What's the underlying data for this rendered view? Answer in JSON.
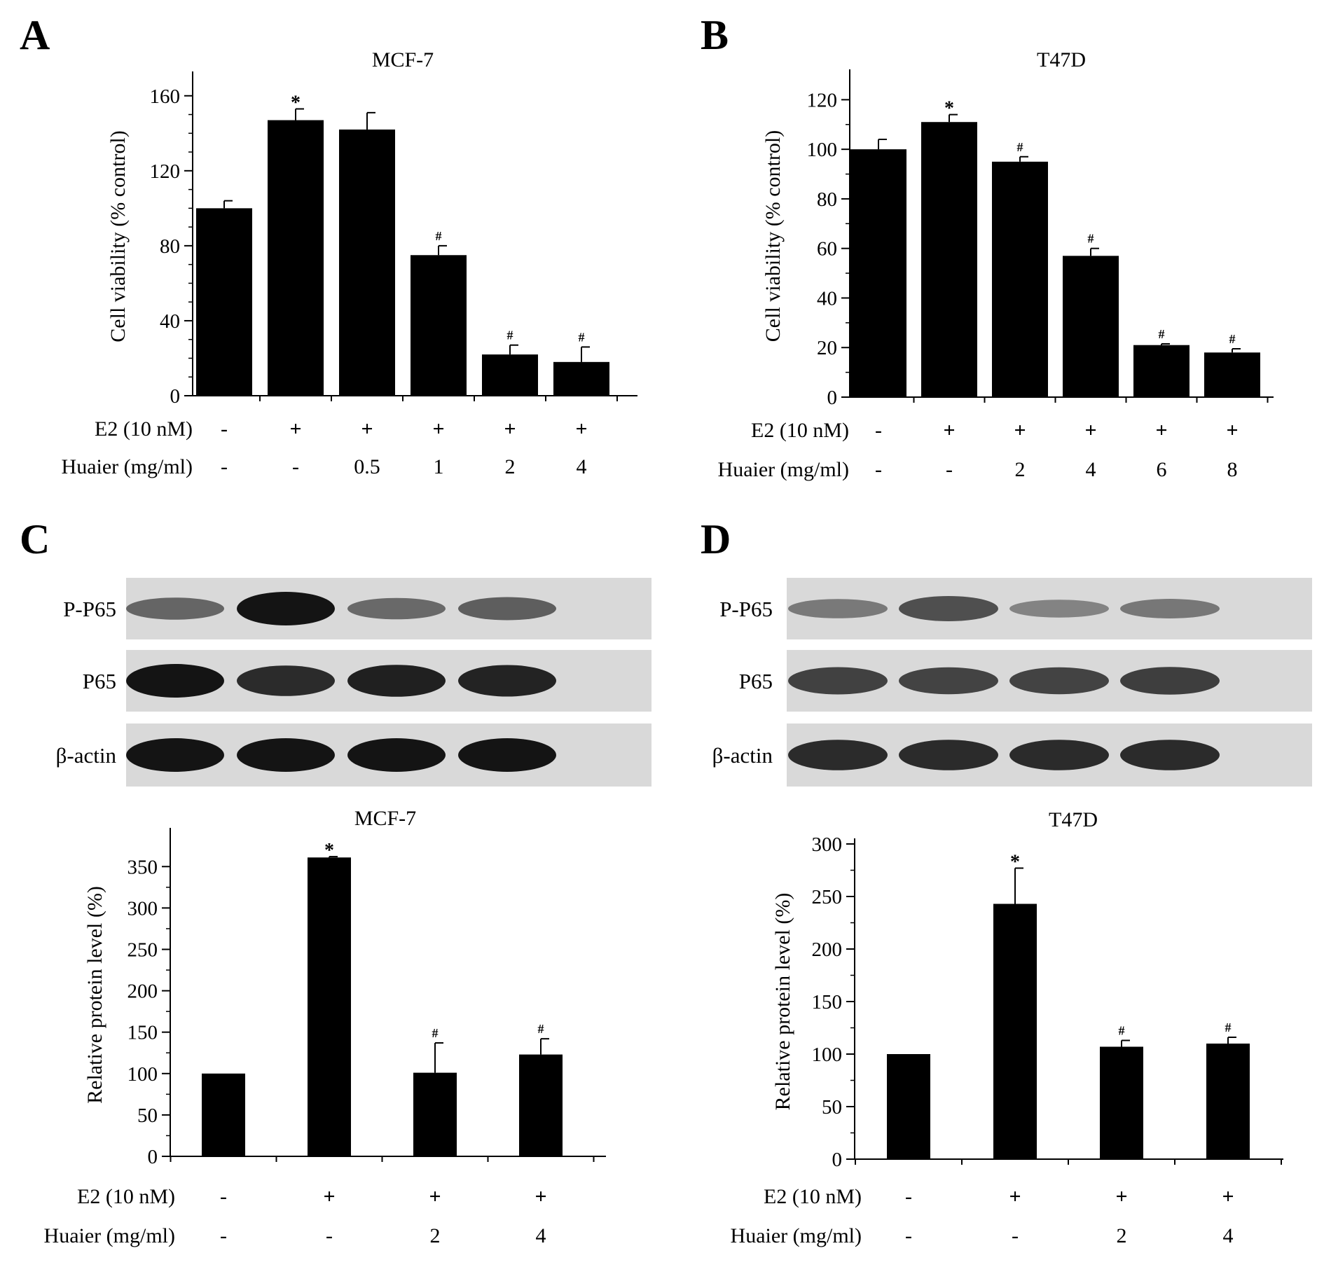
{
  "panels": [
    "A",
    "B",
    "C",
    "D"
  ],
  "chart_data": [
    {
      "id": "A",
      "type": "bar",
      "title": "MCF-7",
      "ylabel": "Cell viability (% control)",
      "xlabel": "",
      "ylim": [
        0,
        170
      ],
      "yticks": [
        0,
        40,
        80,
        120,
        160
      ],
      "categories": [
        "1",
        "2",
        "3",
        "4",
        "5",
        "6"
      ],
      "values": [
        100,
        147,
        142,
        75,
        22,
        18
      ],
      "errors": [
        4,
        6,
        9,
        5,
        5,
        8
      ],
      "marks": [
        "",
        "*",
        "",
        "#",
        "#",
        "#"
      ],
      "conditions": [
        {
          "label": "E2 (10 nM)",
          "values": [
            "-",
            "+",
            "+",
            "+",
            "+",
            "+"
          ]
        },
        {
          "label": "Huaier (mg/ml)",
          "values": [
            "-",
            "-",
            "0.5",
            "1",
            "2",
            "4"
          ]
        }
      ]
    },
    {
      "id": "B",
      "type": "bar",
      "title": "T47D",
      "ylabel": "Cell viability (% control)",
      "xlabel": "",
      "ylim": [
        0,
        130
      ],
      "yticks": [
        0,
        20,
        40,
        60,
        80,
        100,
        120
      ],
      "categories": [
        "1",
        "2",
        "3",
        "4",
        "5",
        "6"
      ],
      "values": [
        100,
        111,
        95,
        57,
        21,
        18
      ],
      "errors": [
        4,
        3,
        2,
        3,
        0.5,
        1.5
      ],
      "marks": [
        "",
        "*",
        "#",
        "#",
        "#",
        "#"
      ],
      "conditions": [
        {
          "label": "E2 (10 nM)",
          "values": [
            "-",
            "+",
            "+",
            "+",
            "+",
            "+"
          ]
        },
        {
          "label": "Huaier (mg/ml)",
          "values": [
            "-",
            "-",
            "2",
            "4",
            "6",
            "8"
          ]
        }
      ]
    },
    {
      "id": "C",
      "type": "bar",
      "title": "MCF-7",
      "ylabel": "Relative protein level (%)",
      "xlabel": "",
      "ylim": [
        0,
        390
      ],
      "yticks": [
        0,
        50,
        100,
        150,
        200,
        250,
        300,
        350
      ],
      "categories": [
        "1",
        "2",
        "3",
        "4"
      ],
      "values": [
        100,
        361,
        101,
        123
      ],
      "errors": [
        0,
        1,
        36,
        19
      ],
      "marks": [
        "",
        "*",
        "#",
        "#"
      ],
      "conditions": [
        {
          "label": "E2 (10 nM)",
          "values": [
            "-",
            "+",
            "+",
            "+"
          ]
        },
        {
          "label": "Huaier (mg/ml)",
          "values": [
            "-",
            "-",
            "2",
            "4"
          ]
        }
      ]
    },
    {
      "id": "D",
      "type": "bar",
      "title": "T47D",
      "ylabel": "Relative protein level (%)",
      "xlabel": "",
      "ylim": [
        0,
        300
      ],
      "yticks": [
        0,
        50,
        100,
        150,
        200,
        250,
        300
      ],
      "categories": [
        "1",
        "2",
        "3",
        "4"
      ],
      "values": [
        100,
        243,
        107,
        110
      ],
      "errors": [
        0,
        34,
        6,
        6
      ],
      "marks": [
        "",
        "*",
        "#",
        "#"
      ],
      "conditions": [
        {
          "label": "E2 (10 nM)",
          "values": [
            "-",
            "+",
            "+",
            "+"
          ]
        },
        {
          "label": "Huaier (mg/ml)",
          "values": [
            "-",
            "-",
            "2",
            "4"
          ]
        }
      ]
    }
  ],
  "blots": {
    "C": {
      "rows": [
        {
          "label": "P-P65",
          "intensity": [
            0.45,
            1.0,
            0.42,
            0.5
          ]
        },
        {
          "label": "P65",
          "intensity": [
            1.0,
            0.85,
            0.92,
            0.9
          ]
        },
        {
          "label": "β-actin",
          "intensity": [
            1.0,
            1.0,
            1.0,
            1.0
          ]
        }
      ]
    },
    "D": {
      "rows": [
        {
          "label": "P-P65",
          "intensity": [
            0.32,
            0.6,
            0.25,
            0.33
          ]
        },
        {
          "label": "P65",
          "intensity": [
            0.7,
            0.68,
            0.68,
            0.72
          ]
        },
        {
          "label": "β-actin",
          "intensity": [
            0.85,
            0.85,
            0.85,
            0.85
          ]
        }
      ]
    }
  },
  "colors": {
    "bar": "#000000",
    "axis": "#000000",
    "blot_bg": "#d9d9d9",
    "band": "#141414"
  }
}
